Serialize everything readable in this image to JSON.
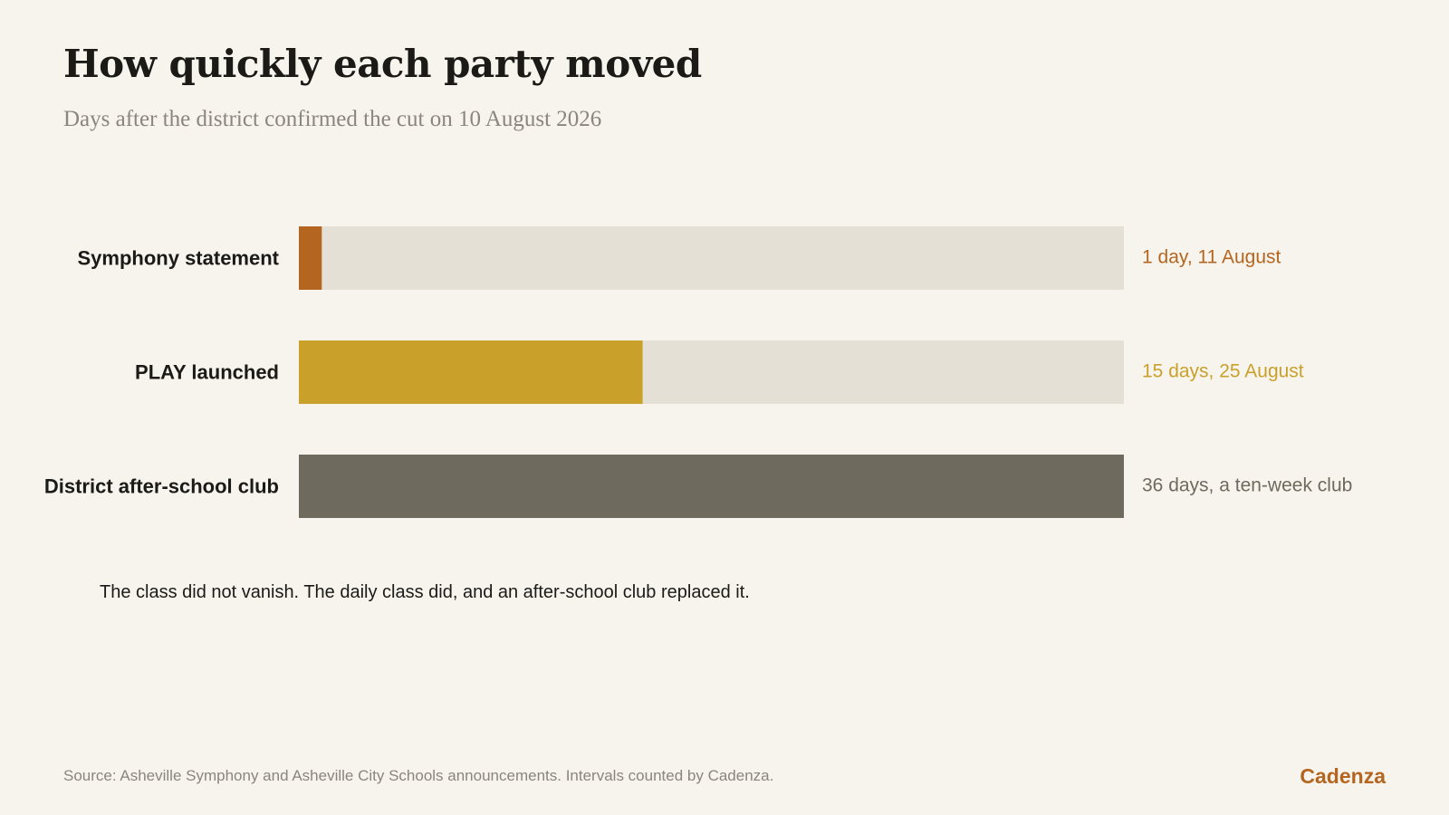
{
  "title": "How quickly each party moved",
  "subtitle": "Days after the district confirmed the cut on 10 August 2026",
  "note": "The class did not vanish. The daily class did, and an after-school club replaced it.",
  "source": "Source: Asheville Symphony and Asheville City Schools announcements. Intervals counted by Cadenza.",
  "brand": "Cadenza",
  "colors": {
    "background": "#f7f4ee",
    "track": "#e4e0d5",
    "symphony": "#b4651f",
    "play": "#c9a12a",
    "district": "#6e6a5d"
  },
  "chart_data": {
    "type": "bar",
    "orientation": "horizontal",
    "categories": [
      "Symphony statement",
      "PLAY launched",
      "District after-school club"
    ],
    "values": [
      1,
      15,
      36
    ],
    "value_labels": [
      "1 day, 11 August",
      "15 days, 25 August",
      "36 days, a ten-week club"
    ],
    "bar_colors": [
      "#b4651f",
      "#c9a12a",
      "#6e6a5d"
    ],
    "label_colors": [
      "#b4651f",
      "#c9a12a",
      "#6e6a5d"
    ],
    "xlim": [
      0,
      36
    ],
    "grid": false,
    "legend": "none"
  }
}
